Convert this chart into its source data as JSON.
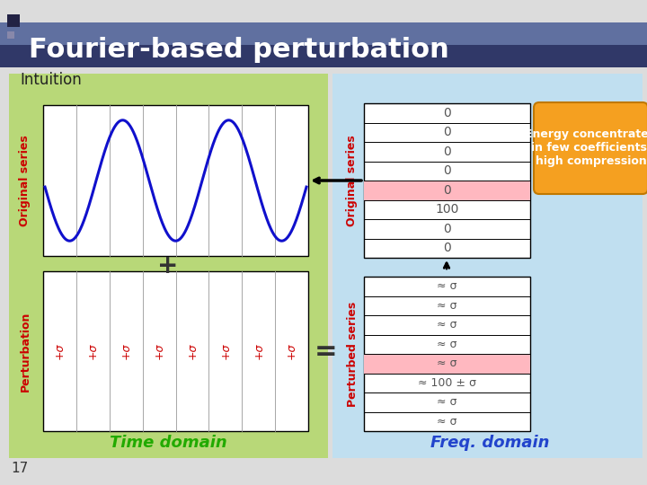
{
  "title": "Fourier-based perturbation",
  "subtitle": "Intuition",
  "bg_color": "#dcdcdc",
  "green_bg": "#b8d878",
  "blue_bg": "#c0dff0",
  "white_box": "#ffffff",
  "pink_highlight": "#ffb8c0",
  "time_label": "Time domain",
  "freq_label": "Freq. domain",
  "slide_number": "17",
  "orig_series_label": "Original series",
  "perturb_label": "Perturbation",
  "perturbed_series_label": "Perturbed series",
  "orig_freq_values": [
    "0",
    "0",
    "0",
    "0",
    "0",
    "100",
    "0",
    "0"
  ],
  "orig_freq_highlight_idx": 5,
  "perturbed_freq_values": [
    "≈ σ",
    "≈ σ",
    "≈ σ",
    "≈ σ",
    "≈ σ",
    "≈ 100 ± σ",
    "≈ σ",
    "≈ σ"
  ],
  "perturbed_freq_highlight_idx": 5,
  "energy_box_text": "Energy concentrated\nin few coefficients:\nhigh compression",
  "energy_box_color": "#f5a020",
  "title_bar_top": "#6070a0",
  "title_bar_bot": "#303868",
  "wave_color": "#1010cc",
  "red_label_color": "#cc0000",
  "green_label_color": "#22aa00",
  "blue_label_color": "#2244cc"
}
